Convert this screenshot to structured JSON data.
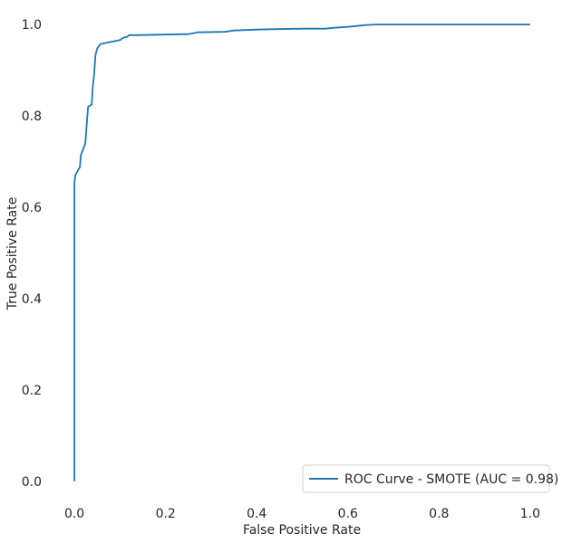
{
  "chart_data": {
    "type": "line",
    "title": "",
    "xlabel": "False Positive Rate",
    "ylabel": "True Positive Rate",
    "xlim": [
      -0.05,
      1.05
    ],
    "ylim": [
      -0.02,
      1.03
    ],
    "xticks": [
      0.0,
      0.2,
      0.4,
      0.6,
      0.8,
      1.0
    ],
    "yticks": [
      0.0,
      0.2,
      0.4,
      0.6,
      0.8,
      1.0
    ],
    "xtick_labels": [
      "0.0",
      "0.2",
      "0.4",
      "0.6",
      "0.8",
      "1.0"
    ],
    "ytick_labels": [
      "0.0",
      "0.2",
      "0.4",
      "0.6",
      "0.8",
      "1.0"
    ],
    "grid": false,
    "legend_position": "bottom-right",
    "series": [
      {
        "name": "ROC Curve - SMOTE (AUC = 0.98)",
        "color": "#1f77b4",
        "x": [
          0.0,
          0.0,
          0.0,
          0.002,
          0.006,
          0.012,
          0.014,
          0.02,
          0.024,
          0.026,
          0.03,
          0.033,
          0.038,
          0.04,
          0.043,
          0.046,
          0.05,
          0.057,
          0.07,
          0.085,
          0.1,
          0.105,
          0.11,
          0.115,
          0.12,
          0.14,
          0.2,
          0.25,
          0.27,
          0.33,
          0.35,
          0.4,
          0.44,
          0.5,
          0.55,
          0.57,
          0.6,
          0.62,
          0.64,
          0.66,
          0.8,
          1.0
        ],
        "y": [
          0.0,
          0.4,
          0.655,
          0.67,
          0.678,
          0.688,
          0.714,
          0.73,
          0.74,
          0.77,
          0.82,
          0.822,
          0.825,
          0.86,
          0.89,
          0.933,
          0.948,
          0.957,
          0.96,
          0.963,
          0.966,
          0.97,
          0.972,
          0.973,
          0.977,
          0.977,
          0.978,
          0.979,
          0.983,
          0.984,
          0.987,
          0.989,
          0.99,
          0.991,
          0.991,
          0.993,
          0.995,
          0.997,
          0.999,
          1.0,
          1.0,
          1.0
        ]
      }
    ]
  }
}
